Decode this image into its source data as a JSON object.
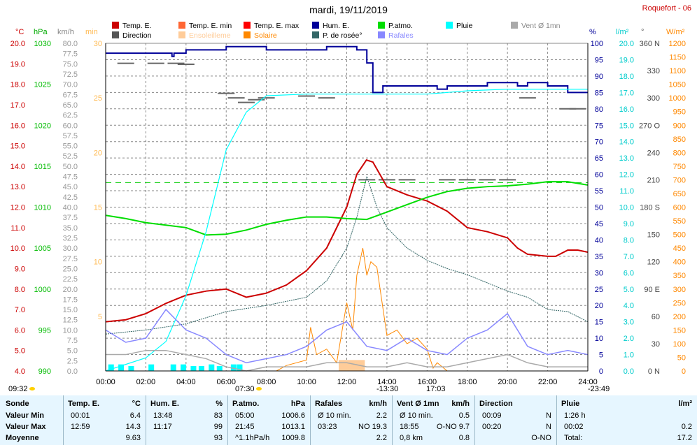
{
  "title": "mardi, 19/11/2019",
  "station": "Roquefort - 06",
  "legend": [
    {
      "label": "Temp. E.",
      "color": "#cc0000"
    },
    {
      "label": "Temp. E. min",
      "color": "#ff6633"
    },
    {
      "label": "Temp. E. max",
      "color": "#ff0000"
    },
    {
      "label": "Hum. E.",
      "color": "#000099"
    },
    {
      "label": "P.atmo.",
      "color": "#00dd00"
    },
    {
      "label": "Pluie",
      "color": "#00ffff"
    },
    {
      "label": "Vent Ø 1mn",
      "color": "#aaaaaa"
    },
    {
      "label": "Direction",
      "color": "#555555"
    },
    {
      "label": "Ensoleilleme",
      "color": "#ffcc99"
    },
    {
      "label": "Solaire",
      "color": "#ff8800"
    },
    {
      "label": "P. de rosée°",
      "color": "#336666"
    },
    {
      "label": "Rafales",
      "color": "#8888ff"
    }
  ],
  "units": {
    "temp": "°C",
    "press": "hPa",
    "wind": "km/h",
    "sun": "min",
    "hum": "%",
    "rain": "l/m²",
    "dir": "°",
    "solar": "W/m²"
  },
  "axis_ticks": {
    "temp": [
      "20.0",
      "19.0",
      "18.0",
      "17.0",
      "16.0",
      "15.0",
      "14.0",
      "13.0",
      "12.0",
      "11.0",
      "10.0",
      "9.0",
      "8.0",
      "7.0",
      "6.0",
      "5.0",
      "4.0"
    ],
    "press": [
      "1030",
      "1025",
      "1020",
      "1015",
      "1010",
      "1005",
      "1000",
      "995",
      "990"
    ],
    "wind": [
      "80.0",
      "77.5",
      "75.0",
      "72.5",
      "70.0",
      "67.5",
      "65.0",
      "62.5",
      "60.0",
      "57.5",
      "55.0",
      "52.5",
      "50.0",
      "47.5",
      "45.0",
      "42.5",
      "40.0",
      "37.5",
      "35.0",
      "32.5",
      "30.0",
      "27.5",
      "25.0",
      "22.5",
      "20.0",
      "17.5",
      "15.0",
      "12.5",
      "10.0",
      "7.5",
      "5.0",
      "2.5",
      "0.0"
    ],
    "sun": [
      "30",
      "25",
      "20",
      "15",
      "10",
      "5"
    ],
    "hum": [
      "100",
      "95",
      "90",
      "85",
      "80",
      "75",
      "70",
      "65",
      "60",
      "55",
      "50",
      "45",
      "40",
      "35",
      "30",
      "25",
      "20",
      "15",
      "10",
      "5",
      "0"
    ],
    "rain": [
      "20.0",
      "19.0",
      "18.0",
      "17.0",
      "16.0",
      "15.0",
      "14.0",
      "13.0",
      "12.0",
      "11.0",
      "10.0",
      "9.0",
      "8.0",
      "7.0",
      "6.0",
      "5.0",
      "4.0",
      "3.0",
      "2.0",
      "1.0",
      "0.0"
    ],
    "dir": [
      "360 N",
      "330",
      "300",
      "270 O",
      "240",
      "210",
      "180 S",
      "150",
      "120",
      "90 E",
      "60",
      "30",
      "0 N"
    ],
    "solar": [
      "1200",
      "1150",
      "1100",
      "1050",
      "1000",
      "950",
      "900",
      "850",
      "800",
      "750",
      "700",
      "650",
      "600",
      "550",
      "500",
      "450",
      "400",
      "350",
      "300",
      "250",
      "200",
      "150",
      "100",
      "50",
      "0"
    ]
  },
  "chart_data": {
    "type": "line",
    "x_unit": "hour of day",
    "x_ticks": [
      "00:00",
      "02:00",
      "04:00",
      "06:00",
      "08:00",
      "10:00",
      "12:00",
      "14:00",
      "16:00",
      "18:00",
      "20:00",
      "22:00",
      "24:00"
    ],
    "series": [
      {
        "name": "Temp. E.",
        "unit": "°C",
        "color": "#cc0000",
        "x": [
          0,
          1,
          2,
          3,
          4,
          5,
          6,
          7,
          8,
          9,
          10,
          11,
          12,
          12.5,
          12.98,
          13.3,
          14,
          15,
          16,
          17,
          18,
          19,
          20,
          20.5,
          21,
          22,
          22.4,
          23,
          23.5,
          24
        ],
        "y": [
          6.4,
          6.5,
          6.8,
          7.3,
          7.7,
          7.9,
          8.0,
          7.6,
          7.8,
          8.2,
          8.9,
          10.0,
          12.0,
          13.6,
          14.3,
          14.2,
          13.0,
          12.6,
          12.3,
          11.8,
          11.0,
          10.8,
          10.5,
          10.0,
          9.7,
          9.6,
          9.6,
          9.9,
          9.9,
          9.8
        ]
      },
      {
        "name": "Hum. E.",
        "unit": "%",
        "color": "#000099",
        "x": [
          0,
          3.3,
          3.4,
          4,
          5,
          6,
          7,
          8,
          9,
          10,
          11,
          11.3,
          12,
          12.5,
          13,
          13.3,
          13.5,
          13.8,
          14,
          15,
          16,
          16.5,
          17,
          18,
          19,
          20,
          20.5,
          21,
          22,
          23,
          24
        ],
        "y": [
          97,
          96,
          97,
          98,
          98,
          99,
          99,
          98,
          98,
          98,
          99,
          99,
          99,
          98,
          94,
          85,
          85,
          87,
          87,
          87,
          87,
          86,
          87,
          87,
          88,
          88,
          87,
          88,
          87,
          85,
          85
        ]
      },
      {
        "name": "P.atmo.",
        "unit": "hPa",
        "color": "#00dd00",
        "x": [
          0,
          1,
          2,
          3,
          4,
          5,
          6,
          7,
          8,
          9,
          10,
          11,
          12,
          13,
          14,
          15,
          16,
          17,
          18,
          19,
          20,
          21,
          22,
          23,
          24
        ],
        "y": [
          1009.0,
          1008.6,
          1008.1,
          1007.8,
          1007.5,
          1006.6,
          1006.7,
          1007.2,
          1007.9,
          1008.4,
          1008.8,
          1008.8,
          1008.6,
          1008.5,
          1009.4,
          1010.3,
          1011.2,
          1011.9,
          1012.3,
          1012.5,
          1012.6,
          1012.8,
          1013.1,
          1013.1,
          1012.7
        ]
      },
      {
        "name": "Pluie",
        "unit": "l/m²",
        "color": "#00ffff",
        "x": [
          0,
          1,
          2,
          3,
          4,
          5,
          6,
          7,
          7.5,
          8,
          10,
          12,
          13,
          14,
          16,
          18,
          20,
          22,
          24
        ],
        "y": [
          0,
          0.4,
          0.8,
          1.8,
          4.6,
          8.5,
          13.5,
          15.8,
          16.3,
          16.8,
          16.9,
          16.9,
          16.9,
          16.9,
          16.9,
          17.1,
          17.2,
          17.2,
          17.2
        ]
      },
      {
        "name": "P. de rosée°",
        "unit": "°C",
        "color": "#336666",
        "x": [
          0,
          2,
          4,
          6,
          8,
          10,
          11,
          12,
          12.5,
          13,
          13.5,
          14,
          15,
          16,
          17,
          18,
          19,
          20,
          21,
          22,
          23,
          24
        ],
        "y": [
          5.8,
          6.0,
          6.3,
          6.9,
          7.2,
          7.6,
          8.4,
          10.0,
          11.5,
          13.5,
          12.0,
          11.0,
          10.0,
          9.4,
          9.0,
          8.7,
          8.3,
          7.9,
          7.6,
          7.0,
          6.9,
          6.4
        ]
      },
      {
        "name": "Solaire",
        "unit": "W/m²",
        "color": "#ff8800",
        "x": [
          0,
          8.5,
          9,
          10,
          10.2,
          10.5,
          11,
          11.5,
          12,
          12.3,
          12.5,
          12.8,
          13,
          13.2,
          13.5,
          14,
          14.5,
          15,
          15.5,
          16,
          16.3,
          16.5,
          17,
          18,
          24
        ],
        "y": [
          0,
          0,
          20,
          40,
          160,
          60,
          80,
          30,
          250,
          150,
          350,
          450,
          350,
          400,
          380,
          130,
          150,
          100,
          120,
          80,
          10,
          30,
          0,
          0,
          0
        ]
      },
      {
        "name": "Rafales",
        "unit": "km/h",
        "color": "#8888ff",
        "x": [
          0,
          1,
          2,
          3,
          4,
          5,
          6,
          7,
          8,
          9,
          10,
          11,
          12,
          13,
          14,
          15,
          16,
          17,
          18,
          19,
          20,
          21,
          22,
          23,
          24
        ],
        "y": [
          10,
          7,
          8,
          15,
          10,
          8,
          4,
          2,
          3,
          4,
          6,
          10,
          12,
          6,
          5,
          8,
          5,
          4,
          8,
          10,
          14,
          6,
          4,
          5,
          4
        ]
      },
      {
        "name": "Vent Ø 1mn",
        "unit": "km/h",
        "color": "#aaaaaa",
        "x": [
          0,
          1,
          2,
          3,
          4,
          5,
          6,
          7,
          8,
          9,
          10,
          11,
          12,
          13,
          14,
          15,
          16,
          17,
          18,
          19,
          20,
          21,
          22,
          23,
          24
        ],
        "y": [
          4,
          4,
          5,
          5,
          4,
          3,
          1,
          0,
          1,
          1,
          1,
          2,
          2,
          1,
          1,
          2,
          1,
          1,
          2,
          3,
          4,
          2,
          1,
          1,
          1
        ]
      }
    ],
    "ranges": {
      "temp": [
        4.0,
        20.0
      ],
      "press": [
        990,
        1030
      ],
      "wind": [
        0,
        80
      ],
      "sun": [
        0,
        30
      ],
      "hum": [
        0,
        100
      ],
      "rain": [
        0,
        20
      ],
      "dir": [
        0,
        360
      ],
      "solar": [
        0,
        1200
      ]
    },
    "pressure_reference_hpa": 1013,
    "direction_marks": {
      "x": [
        1,
        2.5,
        3.5,
        4,
        6,
        6.5,
        7,
        7.5,
        8,
        10,
        11,
        13,
        14,
        15,
        17,
        18,
        19,
        20,
        21,
        23,
        23.5
      ],
      "deg": [
        338,
        338,
        338,
        337,
        305,
        300,
        295,
        298,
        300,
        302,
        300,
        210,
        210,
        210,
        210,
        210,
        210,
        210,
        300,
        288,
        288
      ]
    },
    "sunshine_block": {
      "start": 11.6,
      "end": 12.9,
      "value": 1
    },
    "rain_bars": {
      "x": [
        0.2,
        0.7,
        1.2,
        2.2,
        3.3,
        3.8,
        4.3,
        4.7,
        5.2,
        5.6,
        6.3,
        6.6
      ],
      "y": [
        0.4,
        0.4,
        0.3,
        0.4,
        0.4,
        0.4,
        0.3,
        0.3,
        0.4,
        0.3,
        0.4,
        0.4
      ]
    },
    "grid": true
  },
  "time_marks": {
    "sunrise_left": "09:32",
    "sunrise": "07:30",
    "noon": "-13:30",
    "sunset": "17:03",
    "right": "-23:49"
  },
  "table": {
    "row_labels": [
      "Sonde",
      "Valeur Min",
      "Valeur Max",
      "Moyenne"
    ],
    "sections": [
      {
        "title": "Temp. E.",
        "unit": "°C",
        "rows": [
          [
            "00:01",
            "6.4"
          ],
          [
            "12:59",
            "14.3"
          ],
          [
            "",
            "9.63"
          ]
        ]
      },
      {
        "title": "Hum. E.",
        "unit": "%",
        "rows": [
          [
            "13:48",
            "83"
          ],
          [
            "11:17",
            "99"
          ],
          [
            "",
            "93"
          ]
        ]
      },
      {
        "title": "P.atmo.",
        "unit": "hPa",
        "rows": [
          [
            "05:00",
            "1006.6"
          ],
          [
            "21:45",
            "1013.1"
          ],
          [
            "^1.1hPa/h",
            "1009.8"
          ]
        ]
      },
      {
        "title": "Rafales",
        "unit": "km/h",
        "rows": [
          [
            "Ø 10 min.",
            "2.2"
          ],
          [
            "03:23",
            "NO 19.3"
          ],
          [
            "",
            "2.2"
          ]
        ]
      },
      {
        "title": "Vent Ø 1mn",
        "unit": "km/h",
        "rows": [
          [
            "Ø 10 min.",
            "0.5"
          ],
          [
            "18:55",
            "O-NO 9.7"
          ],
          [
            "0,8 km",
            "0.8"
          ]
        ]
      },
      {
        "title": "Direction",
        "unit": "",
        "rows": [
          [
            "00:09",
            "N"
          ],
          [
            "00:20",
            "N"
          ],
          [
            "",
            "O-NO"
          ]
        ]
      },
      {
        "title": "Pluie",
        "unit": "l/m²",
        "rows": [
          [
            "1:26 h",
            ""
          ],
          [
            "00:02",
            "0.2"
          ],
          [
            "Total:",
            "17.2"
          ]
        ]
      }
    ]
  }
}
